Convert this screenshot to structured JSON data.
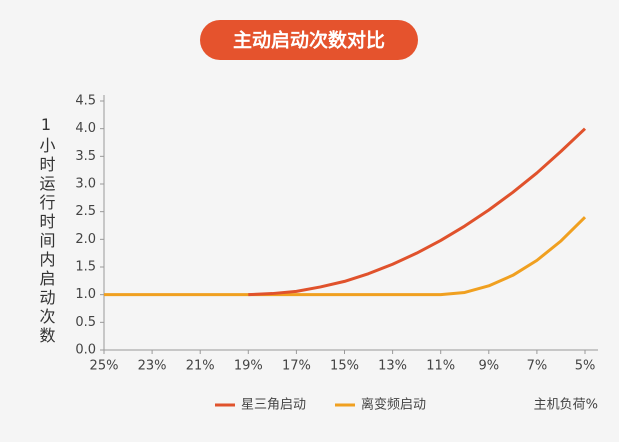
{
  "chart_data": {
    "type": "line",
    "title": "主动启动次数对比",
    "y_label": "1小时运行时间内启动次数",
    "x_label": "主机负荷%",
    "x": [
      25,
      24,
      23,
      22,
      21,
      20,
      19,
      18,
      17,
      16,
      15,
      14,
      13,
      12,
      11,
      10,
      9,
      8,
      7,
      6,
      5
    ],
    "series": [
      {
        "name": "星三角启动",
        "color": "#e0522c",
        "values": [
          null,
          null,
          null,
          null,
          null,
          null,
          1.0,
          1.02,
          1.06,
          1.14,
          1.24,
          1.38,
          1.55,
          1.75,
          1.98,
          2.24,
          2.53,
          2.85,
          3.2,
          3.59,
          4.0
        ]
      },
      {
        "name": "离变频启动",
        "color": "#f0a020",
        "values": [
          1.0,
          1.0,
          1.0,
          1.0,
          1.0,
          1.0,
          1.0,
          1.0,
          1.0,
          1.0,
          1.0,
          1.0,
          1.0,
          1.0,
          1.0,
          1.04,
          1.16,
          1.35,
          1.62,
          1.97,
          2.4
        ]
      }
    ],
    "xlim": [
      25,
      5
    ],
    "xticks": [
      {
        "value": 25,
        "label": "25%"
      },
      {
        "value": 23,
        "label": "23%"
      },
      {
        "value": 21,
        "label": "21%"
      },
      {
        "value": 19,
        "label": "19%"
      },
      {
        "value": 17,
        "label": "17%"
      },
      {
        "value": 15,
        "label": "15%"
      },
      {
        "value": 13,
        "label": "13%"
      },
      {
        "value": 11,
        "label": "11%"
      },
      {
        "value": 9,
        "label": "9%"
      },
      {
        "value": 7,
        "label": "7%"
      },
      {
        "value": 5,
        "label": "5%"
      }
    ],
    "ylim": [
      0,
      4.5
    ],
    "yticks": [
      {
        "value": 0,
        "label": "0.0"
      },
      {
        "value": 0.5,
        "label": "0.5"
      },
      {
        "value": 1,
        "label": "1.0"
      },
      {
        "value": 1.5,
        "label": "1.5"
      },
      {
        "value": 2,
        "label": "2.0"
      },
      {
        "value": 2.5,
        "label": "2.5"
      },
      {
        "value": 3,
        "label": "3.0"
      },
      {
        "value": 3.5,
        "label": "3.5"
      },
      {
        "value": 4,
        "label": "4.0"
      },
      {
        "value": 4.5,
        "label": "4.5"
      }
    ],
    "grid": false,
    "legend": "bottom"
  }
}
